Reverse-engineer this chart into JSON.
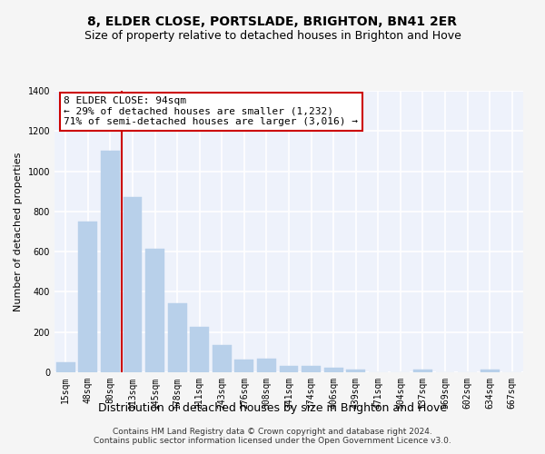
{
  "title": "8, ELDER CLOSE, PORTSLADE, BRIGHTON, BN41 2ER",
  "subtitle": "Size of property relative to detached houses in Brighton and Hove",
  "xlabel": "Distribution of detached houses by size in Brighton and Hove",
  "ylabel": "Number of detached properties",
  "categories": [
    "15sqm",
    "48sqm",
    "80sqm",
    "113sqm",
    "145sqm",
    "178sqm",
    "211sqm",
    "243sqm",
    "276sqm",
    "308sqm",
    "341sqm",
    "374sqm",
    "406sqm",
    "439sqm",
    "471sqm",
    "504sqm",
    "537sqm",
    "569sqm",
    "602sqm",
    "634sqm",
    "667sqm"
  ],
  "values": [
    50,
    750,
    1100,
    870,
    615,
    345,
    225,
    135,
    65,
    70,
    30,
    30,
    22,
    15,
    0,
    0,
    13,
    0,
    0,
    13,
    0
  ],
  "bar_color": "#b8d0ea",
  "bar_edgecolor": "#b8d0ea",
  "vline_color": "#cc0000",
  "vline_x_index": 2,
  "annotation_line1": "8 ELDER CLOSE: 94sqm",
  "annotation_line2": "← 29% of detached houses are smaller (1,232)",
  "annotation_line3": "71% of semi-detached houses are larger (3,016) →",
  "annotation_box_facecolor": "#ffffff",
  "annotation_box_edgecolor": "#cc0000",
  "ylim": [
    0,
    1400
  ],
  "yticks": [
    0,
    200,
    400,
    600,
    800,
    1000,
    1200,
    1400
  ],
  "plot_bg_color": "#eef2fb",
  "figure_bg_color": "#f5f5f5",
  "grid_color": "#ffffff",
  "title_fontsize": 10,
  "subtitle_fontsize": 9,
  "xlabel_fontsize": 9,
  "ylabel_fontsize": 8,
  "tick_fontsize": 7,
  "annotation_fontsize": 8,
  "footer_fontsize": 6.5,
  "footer": "Contains HM Land Registry data © Crown copyright and database right 2024.\nContains public sector information licensed under the Open Government Licence v3.0."
}
